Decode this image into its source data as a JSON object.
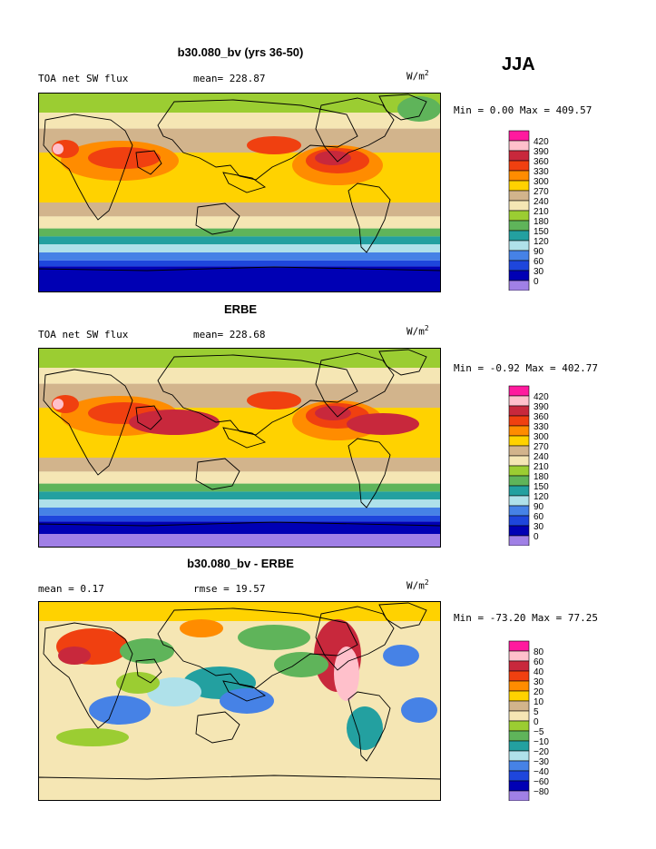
{
  "season": "JJA",
  "units_base": "W/m",
  "units_exp": "2",
  "panels": [
    {
      "title": "b30.080_bv (yrs 36-50)",
      "left_label": "TOA net SW flux",
      "mid_label": "mean= 228.87",
      "min_max": "Min =   0.00 Max = 409.57"
    },
    {
      "title": "ERBE",
      "left_label": "TOA net SW flux",
      "mid_label": "mean= 228.68",
      "min_max": "Min =  -0.92 Max = 402.77"
    },
    {
      "title": "b30.080_bv - ERBE",
      "left_label": "mean =   0.17",
      "mid_label": "rmse =  19.57",
      "min_max": "Min = -73.20 Max =  77.25"
    }
  ],
  "chart_data": [
    {
      "type": "heatmap",
      "title": "b30.080_bv (yrs 36-50)",
      "subtitle": "TOA net SW flux",
      "mean": 228.87,
      "min": 0.0,
      "max": 409.57,
      "colorbar": {
        "levels": [
          "420",
          "390",
          "360",
          "330",
          "300",
          "270",
          "240",
          "210",
          "180",
          "150",
          "120",
          "90",
          "60",
          "30",
          "0"
        ],
        "colors": [
          "#ff1a9e",
          "#ffc0cb",
          "#c8283c",
          "#f04010",
          "#ff8c00",
          "#ffd200",
          "#d2b48c",
          "#f5e6b4",
          "#9bcd32",
          "#5fb45a",
          "#23a0a0",
          "#afe1ea",
          "#4682e6",
          "#1e46dc",
          "#0000b4",
          "#a080e6"
        ]
      }
    },
    {
      "type": "heatmap",
      "title": "ERBE",
      "subtitle": "TOA net SW flux",
      "mean": 228.68,
      "min": -0.92,
      "max": 402.77,
      "colorbar": {
        "levels": [
          "420",
          "390",
          "360",
          "330",
          "300",
          "270",
          "240",
          "210",
          "180",
          "150",
          "120",
          "90",
          "60",
          "30",
          "0"
        ],
        "colors": [
          "#ff1a9e",
          "#ffc0cb",
          "#c8283c",
          "#f04010",
          "#ff8c00",
          "#ffd200",
          "#d2b48c",
          "#f5e6b4",
          "#9bcd32",
          "#5fb45a",
          "#23a0a0",
          "#afe1ea",
          "#4682e6",
          "#1e46dc",
          "#0000b4",
          "#a080e6"
        ]
      }
    },
    {
      "type": "heatmap",
      "title": "b30.080_bv - ERBE",
      "mean": 0.17,
      "rmse": 19.57,
      "min": -73.2,
      "max": 77.25,
      "colorbar": {
        "levels": [
          "80",
          "60",
          "40",
          "30",
          "20",
          "10",
          "5",
          "0",
          "−5",
          "−10",
          "−20",
          "−30",
          "−40",
          "−60",
          "−80"
        ],
        "colors": [
          "#ff1a9e",
          "#ffc0cb",
          "#c8283c",
          "#f04010",
          "#ff8c00",
          "#ffd200",
          "#d2b48c",
          "#f5e6b4",
          "#9bcd32",
          "#5fb45a",
          "#23a0a0",
          "#afe1ea",
          "#4682e6",
          "#1e46dc",
          "#0000b4",
          "#a080e6"
        ]
      }
    }
  ]
}
